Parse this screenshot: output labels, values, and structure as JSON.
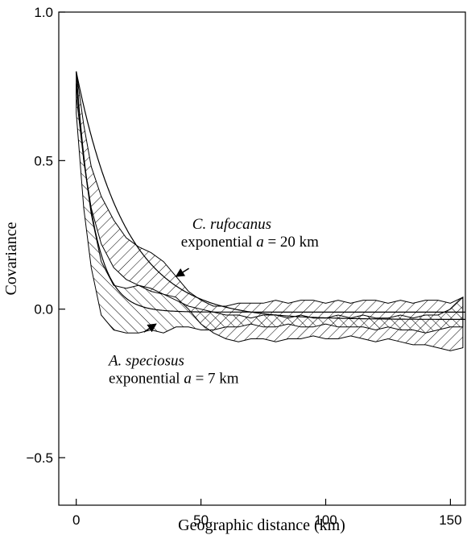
{
  "chart_data": {
    "type": "area",
    "xlabel": "Geographic distance (km)",
    "ylabel": "Covariance",
    "xlim": [
      -7,
      156
    ],
    "ylim": [
      -0.66,
      1.0
    ],
    "xticks": [
      0,
      50,
      100,
      150
    ],
    "xtick_labels": [
      "0",
      "50",
      "100",
      "150"
    ],
    "yticks": [
      1.0,
      0.5,
      0.0,
      -0.5
    ],
    "ytick_labels": [
      "1.0",
      "0.5",
      "0.0",
      "−0.5"
    ],
    "grid": false,
    "series": [
      {
        "name": "C. rufocanus",
        "hatch": "diagonal",
        "band": {
          "x": [
            0,
            3,
            6,
            10,
            15,
            20,
            25,
            30,
            35,
            40,
            45,
            50,
            55,
            60,
            65,
            70,
            75,
            80,
            85,
            90,
            95,
            100,
            105,
            110,
            115,
            120,
            125,
            130,
            135,
            140,
            145,
            150,
            155
          ],
          "upper": [
            0.8,
            0.62,
            0.48,
            0.38,
            0.3,
            0.24,
            0.21,
            0.19,
            0.16,
            0.11,
            0.06,
            0.03,
            0.01,
            0.01,
            0.02,
            0.02,
            0.02,
            0.03,
            0.02,
            0.03,
            0.03,
            0.02,
            0.03,
            0.02,
            0.03,
            0.03,
            0.02,
            0.03,
            0.02,
            0.03,
            0.03,
            0.02,
            0.04
          ],
          "lower": [
            0.72,
            0.5,
            0.34,
            0.22,
            0.14,
            0.1,
            0.08,
            0.06,
            0.05,
            0.04,
            0.0,
            -0.05,
            -0.08,
            -0.1,
            -0.11,
            -0.1,
            -0.1,
            -0.11,
            -0.1,
            -0.1,
            -0.09,
            -0.1,
            -0.1,
            -0.09,
            -0.1,
            -0.11,
            -0.1,
            -0.11,
            -0.12,
            -0.12,
            -0.13,
            -0.14,
            -0.13
          ]
        }
      },
      {
        "name": "A. speciosus",
        "hatch": "diagonal",
        "band": {
          "x": [
            0,
            3,
            6,
            10,
            15,
            20,
            25,
            30,
            35,
            40,
            45,
            50,
            55,
            60,
            65,
            70,
            75,
            80,
            85,
            90,
            95,
            100,
            105,
            110,
            115,
            120,
            125,
            130,
            135,
            140,
            145,
            150,
            155
          ],
          "upper": [
            0.76,
            0.5,
            0.32,
            0.16,
            0.08,
            0.07,
            0.08,
            0.07,
            0.05,
            0.03,
            0.01,
            0.0,
            -0.01,
            -0.02,
            -0.02,
            -0.03,
            -0.02,
            -0.02,
            -0.03,
            -0.02,
            -0.03,
            -0.03,
            -0.02,
            -0.03,
            -0.02,
            -0.03,
            -0.03,
            -0.02,
            -0.03,
            -0.02,
            -0.02,
            0.0,
            0.04
          ],
          "lower": [
            0.66,
            0.34,
            0.14,
            -0.02,
            -0.07,
            -0.08,
            -0.08,
            -0.07,
            -0.08,
            -0.06,
            -0.06,
            -0.07,
            -0.07,
            -0.06,
            -0.06,
            -0.05,
            -0.06,
            -0.06,
            -0.05,
            -0.06,
            -0.06,
            -0.05,
            -0.06,
            -0.06,
            -0.06,
            -0.07,
            -0.06,
            -0.07,
            -0.07,
            -0.08,
            -0.07,
            -0.06,
            -0.06
          ]
        }
      }
    ],
    "curves": [
      {
        "label": "exponential a = 20 km",
        "sill": 0.8,
        "range": 20,
        "nugget": -0.035
      },
      {
        "label": "exponential a = 7 km",
        "sill": 0.8,
        "range": 7,
        "nugget": -0.01
      }
    ],
    "annotations": [
      {
        "name_text": "C. rufocanus",
        "model_prefix": "exponential ",
        "param": "a",
        "suffix": " = 20 km",
        "anchor": [
          42,
          0.27
        ],
        "arrow_to": [
          40,
          0.11
        ]
      },
      {
        "name_text": "A. speciosus",
        "model_prefix": "exponential ",
        "param": "a",
        "suffix": " = 7 km",
        "anchor": [
          13,
          -0.19
        ],
        "arrow_to": [
          32,
          -0.05
        ]
      }
    ]
  }
}
